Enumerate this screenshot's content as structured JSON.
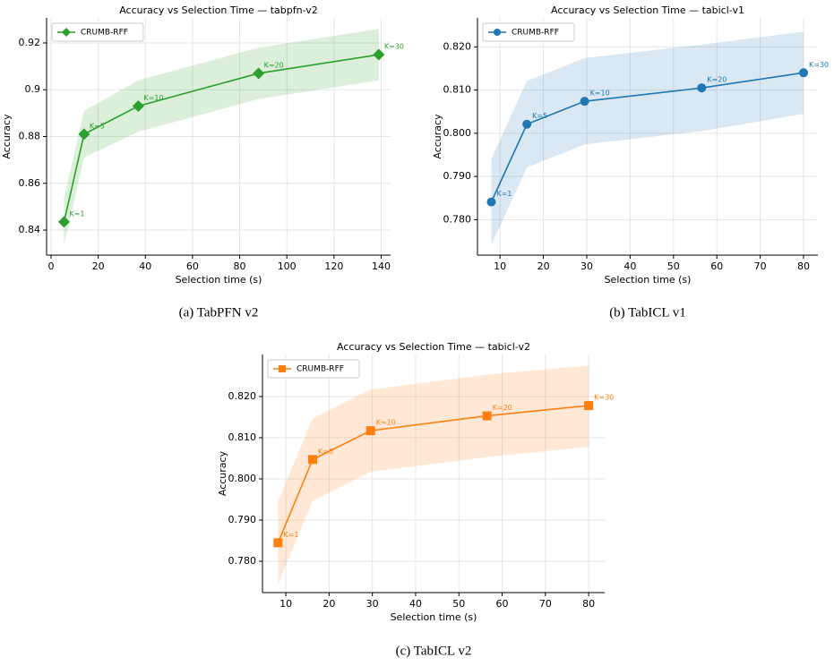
{
  "chart_data": [
    {
      "type": "line",
      "title": "Accuracy vs Selection Time — tabpfn-v2",
      "xlabel": "Selection time (s)",
      "ylabel": "Accuracy",
      "caption": "(a) TabPFN v2",
      "xlim": [
        -1.9,
        144
      ],
      "ylim": [
        0.8293,
        0.9307
      ],
      "xticks": [
        0,
        20,
        40,
        60,
        80,
        100,
        120,
        140
      ],
      "yticks": [
        0.84,
        0.86,
        0.88,
        0.9,
        0.92
      ],
      "grid": true,
      "legend": "upper left",
      "series": [
        {
          "name": "CRUMB-RFF",
          "color": "#2ca02c",
          "marker": "diamond",
          "x": [
            5.5,
            14,
            37,
            88,
            139
          ],
          "values": [
            0.8435,
            0.881,
            0.893,
            0.907,
            0.915
          ],
          "lower": [
            0.8335,
            0.871,
            0.882,
            0.896,
            0.904
          ],
          "upper": [
            0.8535,
            0.891,
            0.904,
            0.918,
            0.926
          ],
          "point_labels": [
            "K=1",
            "K=5",
            "K=10",
            "K=20",
            "K=30"
          ]
        }
      ]
    },
    {
      "type": "line",
      "title": "Accuracy vs Selection Time — tabicl-v1",
      "xlabel": "Selection time (s)",
      "ylabel": "Accuracy",
      "caption": "(b) TabICL v1",
      "xlim": [
        4.8,
        83.3
      ],
      "ylim": [
        0.7718,
        0.8267
      ],
      "xticks": [
        10,
        20,
        30,
        40,
        50,
        60,
        70,
        80
      ],
      "yticks": [
        {
          "value": 0.78,
          "label": "0.780"
        },
        {
          "value": 0.79,
          "label": "0.790"
        },
        {
          "value": 0.8,
          "label": "0.800"
        },
        {
          "value": 0.81,
          "label": "0.810"
        },
        {
          "value": 0.82,
          "label": "0.820"
        }
      ],
      "grid": true,
      "legend": "upper left",
      "series": [
        {
          "name": "CRUMB-RFF",
          "color": "#1f77b4",
          "marker": "circle",
          "x": [
            8,
            16.2,
            29.5,
            56.5,
            80
          ],
          "values": [
            0.7841,
            0.8021,
            0.8074,
            0.8105,
            0.814
          ],
          "lower": [
            0.7741,
            0.7921,
            0.7974,
            0.8005,
            0.8045
          ],
          "upper": [
            0.7941,
            0.8121,
            0.8174,
            0.8205,
            0.8235
          ],
          "point_labels": [
            "K=1",
            "K=5",
            "K=10",
            "K=20",
            "K=30"
          ]
        }
      ]
    },
    {
      "type": "line",
      "title": "Accuracy vs Selection Time — tabicl-v2",
      "xlabel": "Selection time (s)",
      "ylabel": "Accuracy",
      "caption": "(c) TabICL v2",
      "xlim": [
        4.6,
        83.7
      ],
      "ylim": [
        0.7724,
        0.8302
      ],
      "xticks": [
        10,
        20,
        30,
        40,
        50,
        60,
        70,
        80
      ],
      "yticks": [
        {
          "value": 0.78,
          "label": "0.780"
        },
        {
          "value": 0.79,
          "label": "0.790"
        },
        {
          "value": 0.8,
          "label": "0.800"
        },
        {
          "value": 0.81,
          "label": "0.810"
        },
        {
          "value": 0.82,
          "label": "0.820"
        }
      ],
      "grid": true,
      "legend": "upper left",
      "series": [
        {
          "name": "CRUMB-RFF",
          "color": "#ff7f0e",
          "marker": "square",
          "x": [
            8.2,
            16.2,
            29.6,
            56.5,
            80
          ],
          "values": [
            0.7845,
            0.8047,
            0.8117,
            0.8153,
            0.8178
          ],
          "lower": [
            0.7745,
            0.7947,
            0.8017,
            0.8053,
            0.8078
          ],
          "upper": [
            0.7945,
            0.8147,
            0.8217,
            0.8253,
            0.8275
          ],
          "point_labels": [
            "K=1",
            "K=5",
            "K=10",
            "K=20",
            "K=30"
          ]
        }
      ]
    }
  ]
}
